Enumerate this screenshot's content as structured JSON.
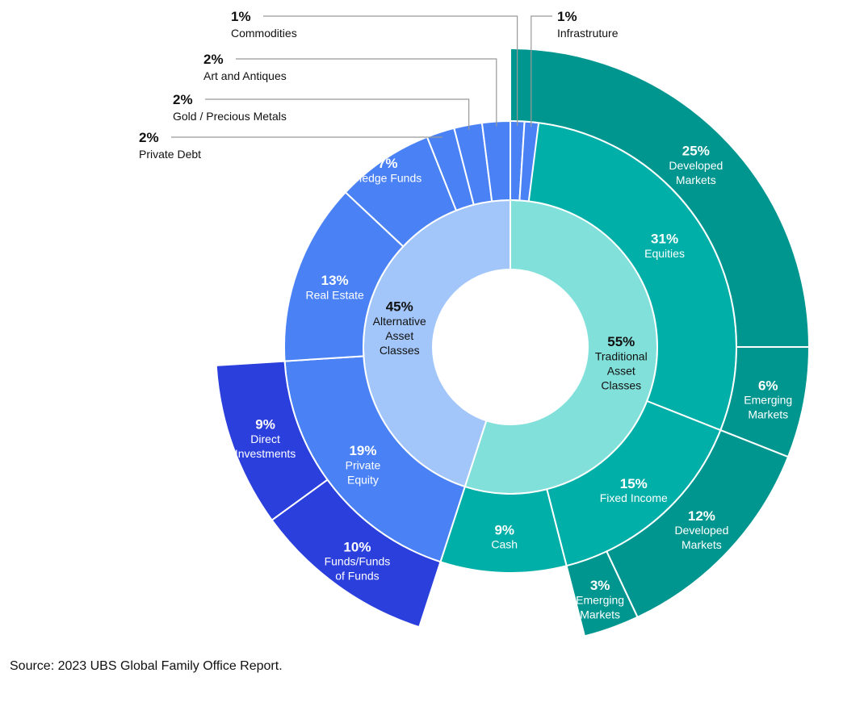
{
  "chart_data": {
    "type": "sunburst",
    "colors": {
      "traditional_inner": "#82E0DA",
      "traditional_middle": "#00AFA8",
      "traditional_outer": "#009690",
      "alternative_inner": "#A3C6FA",
      "alternative_middle": "#4A82F5",
      "alternative_outer": "#2B3FDD",
      "separator": "#FFFFFF",
      "leader_line": "#999999",
      "dark_text": "#111111",
      "light_text": "#FFFFFF"
    },
    "inner": [
      {
        "name": "Traditional Asset Classes",
        "lines": [
          "Traditional",
          "Asset",
          "Classes"
        ],
        "pct_label": "55%",
        "value": 55
      },
      {
        "name": "Alternative Asset Classes",
        "lines": [
          "Alternative",
          "Asset",
          "Classes"
        ],
        "pct_label": "45%",
        "value": 45
      }
    ],
    "middle": [
      {
        "name": "Equities",
        "lines": [
          "Equities"
        ],
        "pct_label": "31%",
        "value": 31,
        "group": "traditional"
      },
      {
        "name": "Fixed Income",
        "lines": [
          "Fixed Income"
        ],
        "pct_label": "15%",
        "value": 15,
        "group": "traditional"
      },
      {
        "name": "Cash",
        "lines": [
          "Cash"
        ],
        "pct_label": "9%",
        "value": 9,
        "group": "traditional"
      },
      {
        "name": "Private Equity",
        "lines": [
          "Private",
          "Equity"
        ],
        "pct_label": "19%",
        "value": 19,
        "group": "alternative"
      },
      {
        "name": "Real Estate",
        "lines": [
          "Real Estate"
        ],
        "pct_label": "13%",
        "value": 13,
        "group": "alternative"
      },
      {
        "name": "Hedge Funds",
        "lines": [
          "Hedge Funds"
        ],
        "pct_label": "7%",
        "value": 7,
        "group": "alternative"
      },
      {
        "name": "Private Debt",
        "lines": [
          "Private Debt"
        ],
        "pct_label": "2%",
        "value": 2,
        "group": "alternative"
      },
      {
        "name": "Gold / Precious Metals",
        "lines": [
          "Gold / Precious Metals"
        ],
        "pct_label": "2%",
        "value": 2,
        "group": "alternative"
      },
      {
        "name": "Art and Antiques",
        "lines": [
          "Art and Antiques"
        ],
        "pct_label": "2%",
        "value": 2,
        "group": "alternative"
      },
      {
        "name": "Commodities",
        "lines": [
          "Commodities"
        ],
        "pct_label": "1%",
        "value": 1,
        "group": "alternative"
      },
      {
        "name": "Infrastruture",
        "lines": [
          "Infrastruture"
        ],
        "pct_label": "1%",
        "value": 1,
        "group": "alternative"
      }
    ],
    "outer": [
      {
        "parent": "Equities",
        "name": "Developed Markets",
        "lines": [
          "Developed",
          "Markets"
        ],
        "pct_label": "25%",
        "value": 25
      },
      {
        "parent": "Equities",
        "name": "Emerging Markets",
        "lines": [
          "Emerging",
          "Markets"
        ],
        "pct_label": "6%",
        "value": 6
      },
      {
        "parent": "Fixed Income",
        "name": "Developed Markets",
        "lines": [
          "Developed",
          "Markets"
        ],
        "pct_label": "12%",
        "value": 12
      },
      {
        "parent": "Fixed Income",
        "name": "Emerging Markets",
        "lines": [
          "Emerging",
          "Markets"
        ],
        "pct_label": "3%",
        "value": 3
      },
      {
        "parent": "Private Equity",
        "name": "Funds/Funds of Funds",
        "lines": [
          "Funds/Funds",
          "of Funds"
        ],
        "pct_label": "10%",
        "value": 10
      },
      {
        "parent": "Private Equity",
        "name": "Direct Investments",
        "lines": [
          "Direct",
          "Investments"
        ],
        "pct_label": "9%",
        "value": 9
      }
    ]
  },
  "source_note": "Source: 2023 UBS Global Family Office Report."
}
